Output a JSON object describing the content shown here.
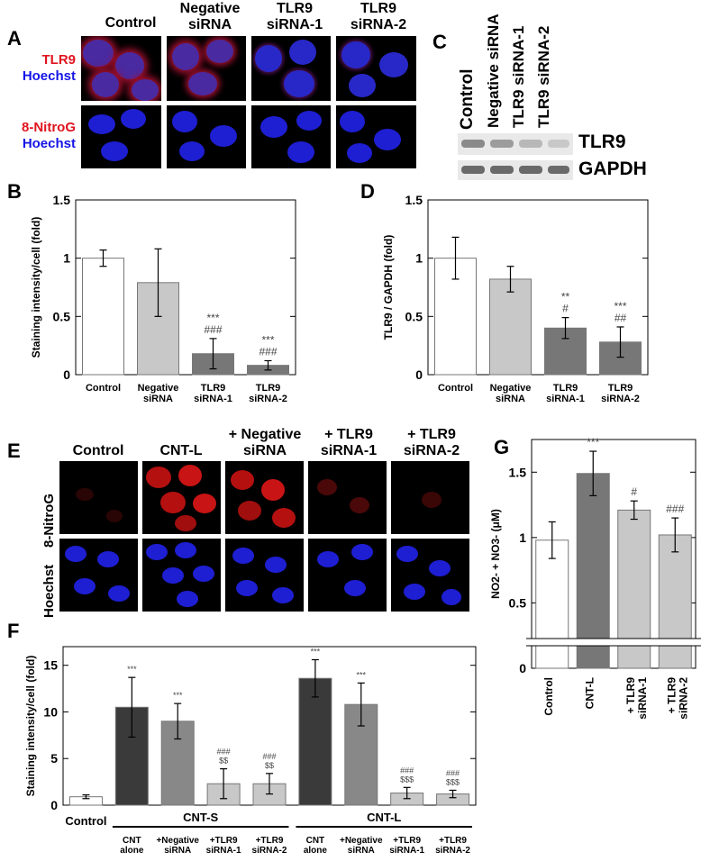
{
  "panels": {
    "A": "A",
    "B": "B",
    "C": "C",
    "D": "D",
    "E": "E",
    "F": "F",
    "G": "G"
  },
  "panelA": {
    "columns": [
      "Control",
      "Negative\nsiRNA",
      "TLR9\nsiRNA-1",
      "TLR9\nsiRNA-2"
    ],
    "row1": {
      "stain": "TLR9",
      "counter": "Hoechst"
    },
    "row2": {
      "stain": "8-NitroG",
      "counter": "Hoechst"
    },
    "colors": {
      "red": "#e0141e",
      "blue": "#1414e6"
    }
  },
  "panelC": {
    "lanes": [
      "Control",
      "Negative siRNA",
      "TLR9 siRNA-1",
      "TLR9 siRNA-2"
    ],
    "bands": [
      "TLR9",
      "GAPDH"
    ]
  },
  "panelE": {
    "columns": [
      "Control",
      "CNT-L",
      "+ Negative\nsiRNA",
      "+ TLR9\nsiRNA-1",
      "+ TLR9\nsiRNA-2"
    ],
    "rows": [
      "8-NitroG",
      "Hoechst"
    ]
  },
  "chart_data": [
    {
      "panel": "B",
      "type": "bar",
      "categories": [
        "Control",
        "Negative\nsiRNA",
        "TLR9\nsiRNA-1",
        "TLR9\nsiRNA-2"
      ],
      "values": [
        1.0,
        0.79,
        0.18,
        0.08
      ],
      "errors": [
        0.07,
        0.29,
        0.13,
        0.04
      ],
      "significance": [
        [
          "",
          ""
        ],
        [
          "",
          ""
        ],
        [
          "***",
          "###"
        ],
        [
          "***",
          "###"
        ]
      ],
      "ylabel": "Staining intensity/cell (fold)",
      "ylim": [
        0,
        1.5
      ],
      "yticks": [
        0,
        0.5,
        1,
        1.5
      ],
      "bar_colors": [
        "#ffffff",
        "#c8c8c8",
        "#777777",
        "#777777"
      ]
    },
    {
      "panel": "D",
      "type": "bar",
      "categories": [
        "Control",
        "Negative\nsiRNA",
        "TLR9\nsiRNA-1",
        "TLR9\nsiRNA-2"
      ],
      "values": [
        1.0,
        0.82,
        0.4,
        0.28
      ],
      "errors": [
        0.18,
        0.11,
        0.09,
        0.13
      ],
      "significance": [
        [
          "",
          ""
        ],
        [
          "",
          ""
        ],
        [
          "**",
          "#"
        ],
        [
          "***",
          "##"
        ]
      ],
      "ylabel": "TLR9 / GAPDH (fold)",
      "ylim": [
        0,
        1.5
      ],
      "yticks": [
        0,
        0.5,
        1,
        1.5
      ],
      "bar_colors": [
        "#ffffff",
        "#c8c8c8",
        "#777777",
        "#777777"
      ]
    },
    {
      "panel": "G",
      "type": "bar",
      "categories": [
        "Control",
        "CNT-L",
        "+ TLR9\nsiRNA-1",
        "+ TLR9\nsiRNA-2"
      ],
      "values": [
        0.98,
        1.49,
        1.21,
        1.02
      ],
      "errors": [
        0.14,
        0.17,
        0.07,
        0.13
      ],
      "significance": [
        "",
        "***",
        "#",
        "###"
      ],
      "ylabel": "NO2- + NO3- (μM)",
      "ylim": [
        0,
        1.75
      ],
      "yticks": [
        0,
        0.5,
        1,
        1.5
      ],
      "axis_break": true,
      "bar_colors": [
        "#ffffff",
        "#777777",
        "#c8c8c8",
        "#c8c8c8"
      ]
    },
    {
      "panel": "F",
      "type": "bar",
      "categories": [
        "Control",
        "CNT\nalone",
        "+Negative\nsiRNA",
        "+TLR9\nsiRNA-1",
        "+TLR9\nsiRNA-2",
        "CNT\nalone",
        "+Negative\nsiRNA",
        "+TLR9\nsiRNA-1",
        "+TLR9\nsiRNA-2"
      ],
      "groups": [
        {
          "label": "CNT-S",
          "from": 1,
          "to": 4
        },
        {
          "label": "CNT-L",
          "from": 5,
          "to": 8
        }
      ],
      "values": [
        0.9,
        10.5,
        9.0,
        2.3,
        2.3,
        13.6,
        10.8,
        1.3,
        1.2
      ],
      "errors": [
        0.2,
        3.2,
        1.9,
        1.6,
        1.1,
        2.0,
        2.3,
        0.6,
        0.4
      ],
      "significance": [
        [
          "",
          ""
        ],
        [
          "***",
          ""
        ],
        [
          "***",
          ""
        ],
        [
          "###",
          "$$"
        ],
        [
          "###",
          "$$"
        ],
        [
          "***",
          ""
        ],
        [
          "***",
          ""
        ],
        [
          "###",
          "$$$"
        ],
        [
          "###",
          "$$$"
        ]
      ],
      "ylabel": "Staining intensity/cell (fold)",
      "ylim": [
        0,
        17
      ],
      "yticks": [
        0,
        5,
        10,
        15
      ],
      "bar_colors": [
        "#ffffff",
        "#3a3a3a",
        "#888888",
        "#c8c8c8",
        "#c8c8c8",
        "#3a3a3a",
        "#888888",
        "#c8c8c8",
        "#c8c8c8"
      ]
    }
  ]
}
